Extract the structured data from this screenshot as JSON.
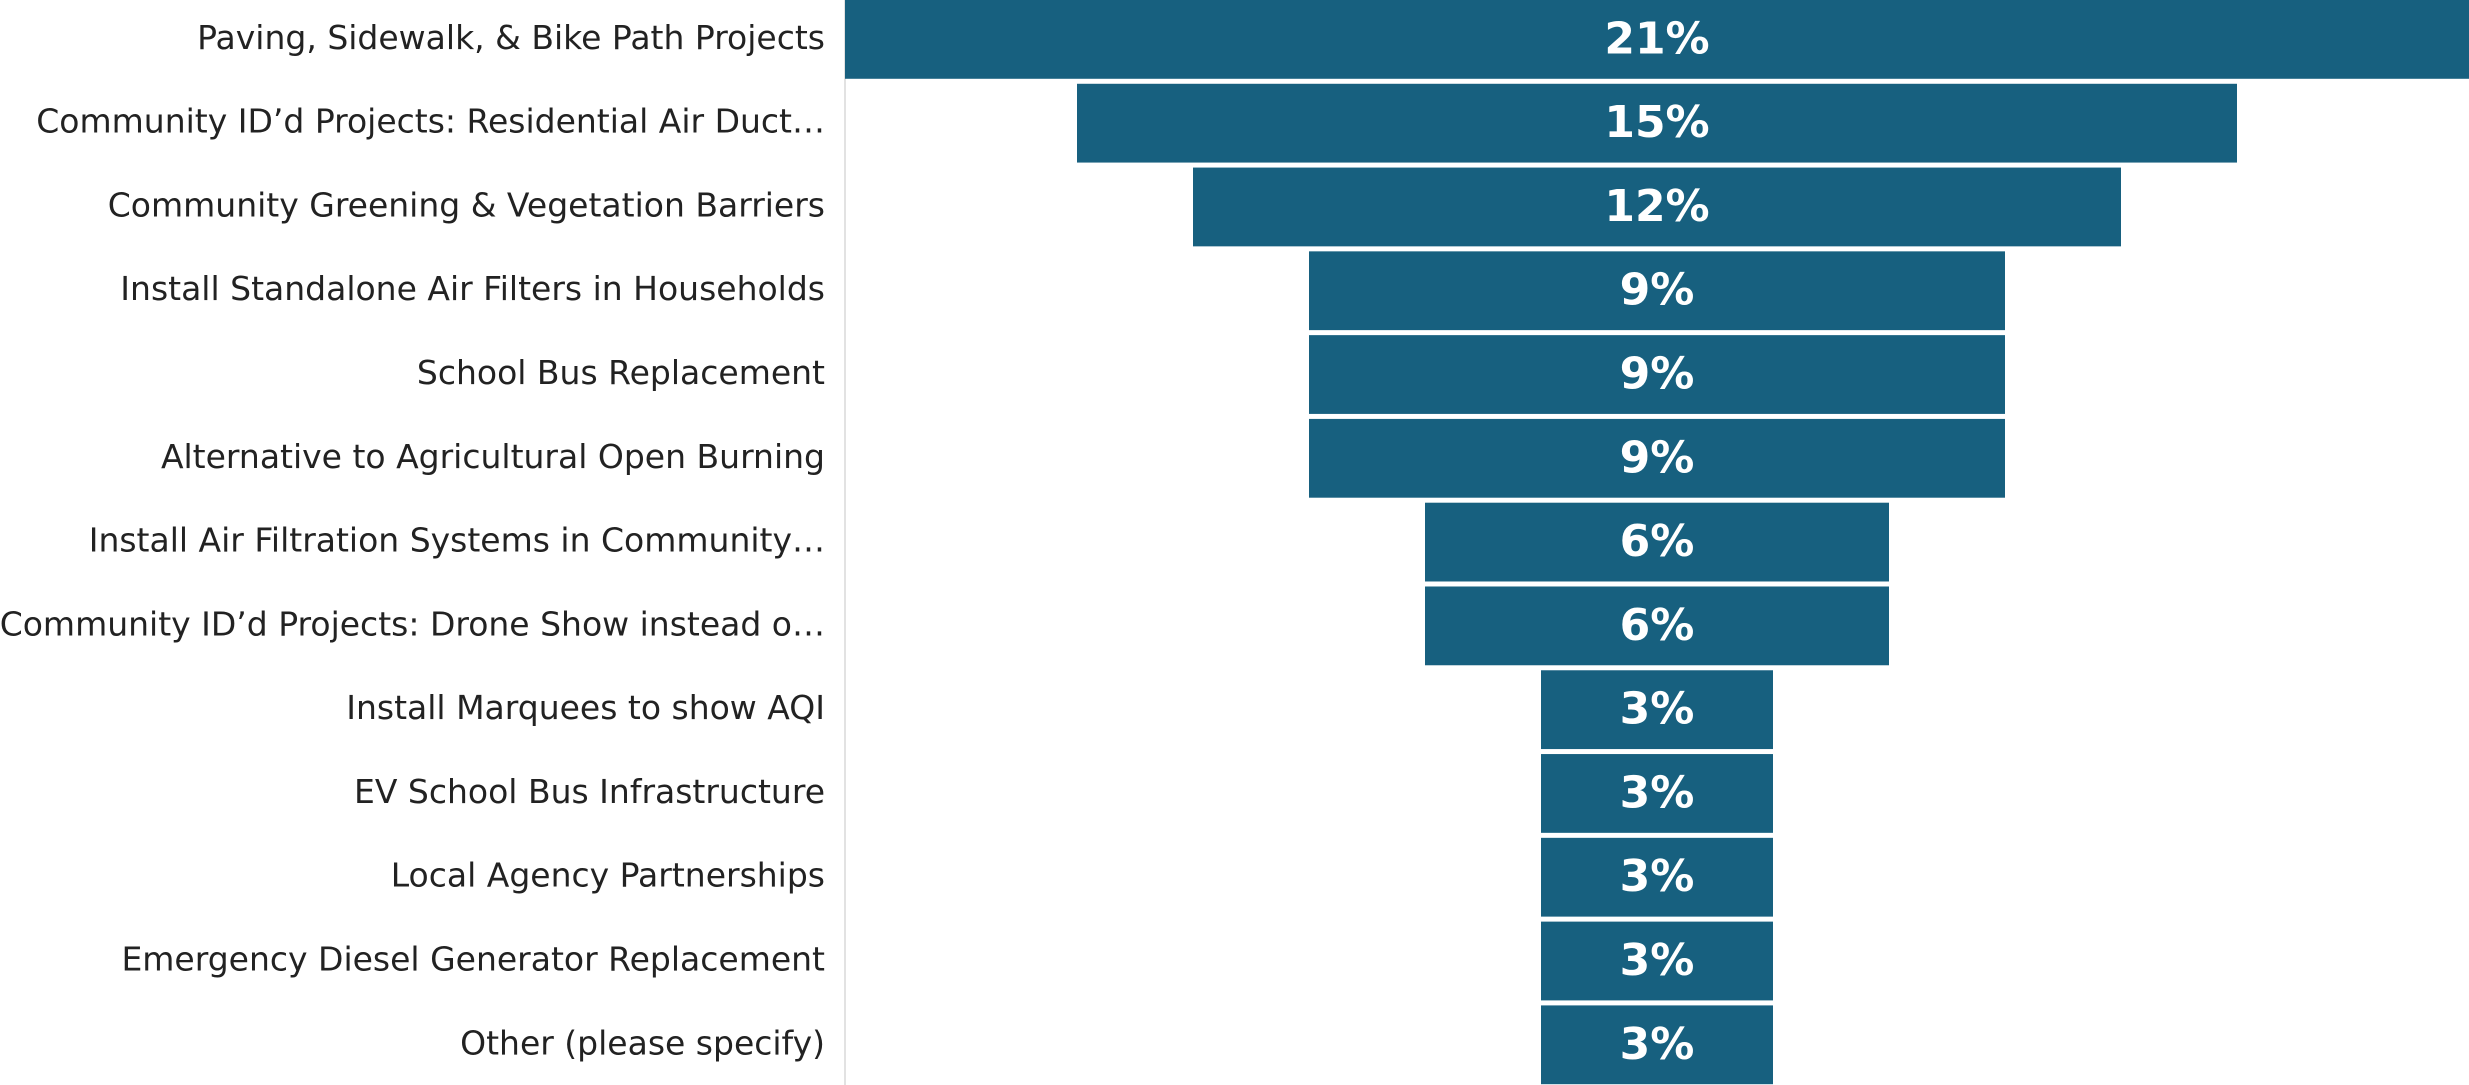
{
  "chart_data": {
    "type": "funnel",
    "categories": [
      "Paving, Sidewalk, & Bike Path Projects",
      "Community ID’d Projects: Residential Air Duct…",
      "Community Greening & Vegetation Barriers",
      "Install Standalone Air Filters in Households",
      "School Bus Replacement",
      "Alternative to Agricultural Open Burning",
      "Install Air Filtration Systems in Community…",
      "Community ID’d Projects: Drone Show instead o…",
      "Install Marquees to show AQI",
      "EV School Bus Infrastructure",
      "Local Agency Partnerships",
      "Emergency Diesel Generator Replacement",
      "Other (please specify)"
    ],
    "values": [
      21,
      15,
      12,
      9,
      9,
      9,
      6,
      6,
      3,
      3,
      3,
      3,
      3
    ],
    "value_labels": [
      "21%",
      "15%",
      "12%",
      "9%",
      "9%",
      "9%",
      "6%",
      "6%",
      "3%",
      "3%",
      "3%",
      "3%",
      "3%"
    ],
    "color": "#17607f"
  }
}
